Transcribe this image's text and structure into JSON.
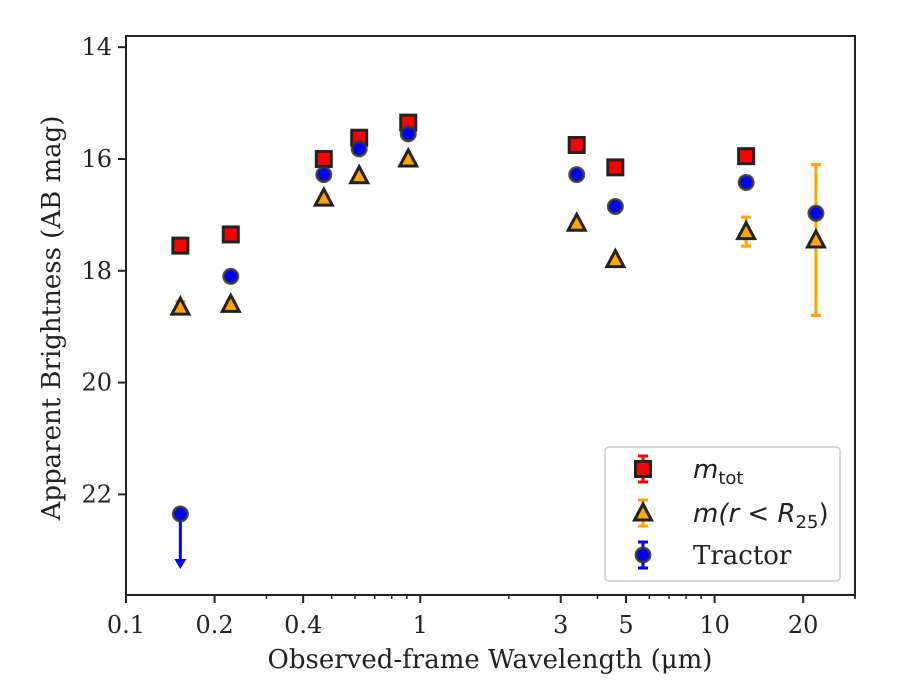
{
  "chart_data": {
    "type": "scatter",
    "xlabel": "Observed-frame Wavelength (μm)",
    "ylabel": "Apparent Brightness (AB mag)",
    "xscale": "log",
    "xlim": [
      0.1,
      30
    ],
    "ylim": [
      23.8,
      13.8
    ],
    "y_inverted": true,
    "grid": false,
    "legend_position": "bottom-right",
    "xticks": [
      {
        "value": 0.1,
        "label": "0.1"
      },
      {
        "value": 0.2,
        "label": "0.2"
      },
      {
        "value": 0.4,
        "label": "0.4"
      },
      {
        "value": 1,
        "label": "1"
      },
      {
        "value": 3,
        "label": "3"
      },
      {
        "value": 5,
        "label": "5"
      },
      {
        "value": 10,
        "label": "10"
      },
      {
        "value": 20,
        "label": "20"
      }
    ],
    "yticks": [
      {
        "value": 14,
        "label": "14"
      },
      {
        "value": 16,
        "label": "16"
      },
      {
        "value": 18,
        "label": "18"
      },
      {
        "value": 20,
        "label": "20"
      },
      {
        "value": 22,
        "label": "22"
      }
    ],
    "series": [
      {
        "key": "m_tot",
        "legend_main": "m",
        "legend_sub": "tot",
        "marker": "square",
        "color": "#ff0000",
        "edgecolor": "#222222",
        "errcolor": "#ff0000",
        "points": [
          {
            "x": 0.153,
            "y": 17.55,
            "err": 0.08
          },
          {
            "x": 0.227,
            "y": 17.35,
            "err": 0.06
          },
          {
            "x": 0.47,
            "y": 16.0,
            "err": 0.04
          },
          {
            "x": 0.62,
            "y": 15.62,
            "err": 0.04
          },
          {
            "x": 0.91,
            "y": 15.35,
            "err": 0.04
          },
          {
            "x": 3.4,
            "y": 15.75,
            "err": 0.05
          },
          {
            "x": 4.6,
            "y": 16.15,
            "err": 0.05
          },
          {
            "x": 12.8,
            "y": 15.95,
            "err": 0.06
          }
        ]
      },
      {
        "key": "m_r_R25",
        "legend_main": "m(r < R",
        "legend_sub": "25",
        "legend_tail": ")",
        "marker": "triangle",
        "color": "#ffa500",
        "edgecolor": "#222222",
        "errcolor": "#ffa500",
        "points": [
          {
            "x": 0.153,
            "y": 18.65,
            "err": 0.1
          },
          {
            "x": 0.227,
            "y": 18.6,
            "err": 0.06
          },
          {
            "x": 0.47,
            "y": 16.7,
            "err": 0.04
          },
          {
            "x": 0.62,
            "y": 16.3,
            "err": 0.04
          },
          {
            "x": 0.91,
            "y": 16.0,
            "err": 0.04
          },
          {
            "x": 3.4,
            "y": 17.15,
            "err": 0.05
          },
          {
            "x": 4.6,
            "y": 17.8,
            "err": 0.05
          },
          {
            "x": 12.8,
            "y": 17.3,
            "err": 0.26
          },
          {
            "x": 22.1,
            "y": 17.45,
            "err_low": 1.35,
            "err_high": 1.35
          }
        ]
      },
      {
        "key": "tractor",
        "legend_main": "Tractor",
        "marker": "circle",
        "color": "#0000ff",
        "edgecolor": "#333333",
        "errcolor": "#0000ff",
        "points": [
          {
            "x": 0.153,
            "y": 22.35,
            "upper_limit": true,
            "arrow_to": 23.3
          },
          {
            "x": 0.227,
            "y": 18.1,
            "err": 0.06
          },
          {
            "x": 0.47,
            "y": 16.28,
            "err": 0.04
          },
          {
            "x": 0.62,
            "y": 15.82,
            "err": 0.04
          },
          {
            "x": 0.91,
            "y": 15.55,
            "err": 0.04
          },
          {
            "x": 3.4,
            "y": 16.28,
            "err": 0.05
          },
          {
            "x": 4.6,
            "y": 16.85,
            "err": 0.05
          },
          {
            "x": 12.8,
            "y": 16.42,
            "err": 0.06
          },
          {
            "x": 22.1,
            "y": 16.97,
            "err": 0.08
          }
        ]
      }
    ]
  }
}
